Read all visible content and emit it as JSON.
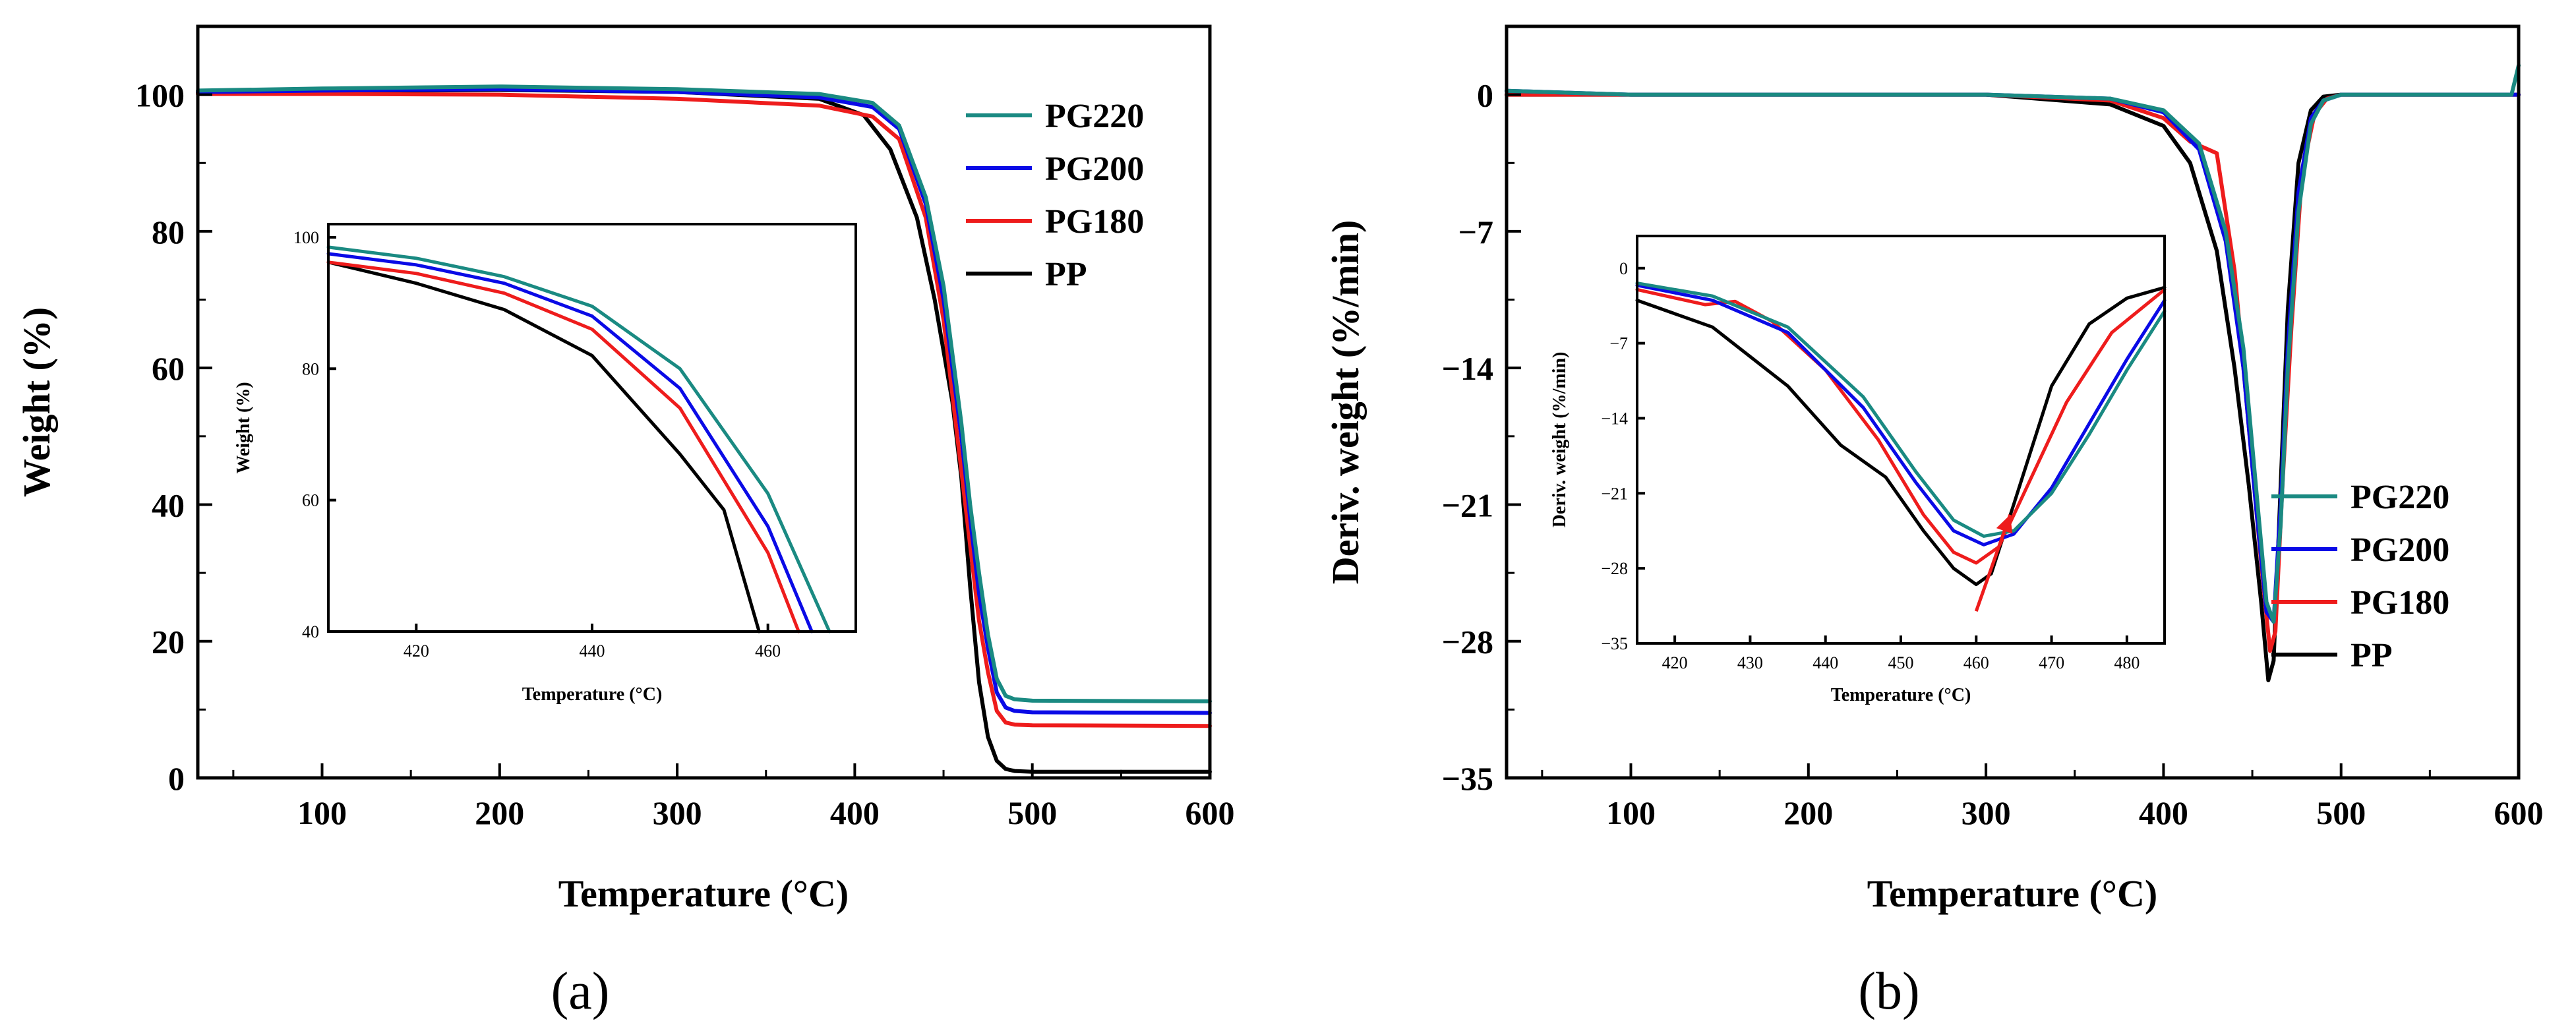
{
  "chart_data": [
    {
      "id": "a",
      "type": "line",
      "panel_label": "(a)",
      "title": "",
      "xlabel": "Temperature (°C)",
      "ylabel": "Weight (%)",
      "xlim": [
        30,
        600
      ],
      "ylim": [
        0,
        110
      ],
      "xticks": [
        100,
        200,
        300,
        400,
        500,
        600
      ],
      "yticks": [
        0,
        20,
        40,
        60,
        80,
        100
      ],
      "legend_position": "top-right",
      "colors": {
        "PG220": "#1a8a82",
        "PG200": "#0a0ae6",
        "PG180": "#ee1c1c",
        "PP": "#000000"
      },
      "series": [
        {
          "name": "PG220",
          "points": [
            [
              30,
              100.6
            ],
            [
              100,
              100.9
            ],
            [
              200,
              101.2
            ],
            [
              300,
              100.8
            ],
            [
              380,
              100.1
            ],
            [
              410,
              98.8
            ],
            [
              425,
              95.5
            ],
            [
              440,
              85
            ],
            [
              450,
              72
            ],
            [
              460,
              52
            ],
            [
              465,
              40
            ],
            [
              470,
              30
            ],
            [
              475,
              21
            ],
            [
              480,
              14.5
            ],
            [
              485,
              12
            ],
            [
              490,
              11.5
            ],
            [
              500,
              11.3
            ],
            [
              600,
              11.2
            ]
          ]
        },
        {
          "name": "PG200",
          "points": [
            [
              30,
              100.4
            ],
            [
              100,
              100.6
            ],
            [
              200,
              100.8
            ],
            [
              300,
              100.4
            ],
            [
              380,
              99.6
            ],
            [
              410,
              98.2
            ],
            [
              425,
              95
            ],
            [
              440,
              84
            ],
            [
              450,
              70
            ],
            [
              460,
              50
            ],
            [
              465,
              38
            ],
            [
              470,
              27
            ],
            [
              475,
              19
            ],
            [
              480,
              12.5
            ],
            [
              485,
              10.3
            ],
            [
              490,
              9.8
            ],
            [
              500,
              9.6
            ],
            [
              600,
              9.5
            ]
          ]
        },
        {
          "name": "PG180",
          "points": [
            [
              30,
              100.1
            ],
            [
              100,
              100.1
            ],
            [
              200,
              100.0
            ],
            [
              300,
              99.4
            ],
            [
              380,
              98.4
            ],
            [
              410,
              96.8
            ],
            [
              425,
              93.5
            ],
            [
              440,
              82
            ],
            [
              450,
              67
            ],
            [
              460,
              45
            ],
            [
              465,
              34
            ],
            [
              470,
              23
            ],
            [
              475,
              15.5
            ],
            [
              480,
              9.8
            ],
            [
              485,
              8.1
            ],
            [
              490,
              7.8
            ],
            [
              500,
              7.7
            ],
            [
              600,
              7.6
            ]
          ]
        },
        {
          "name": "PP",
          "points": [
            [
              30,
              100.3
            ],
            [
              100,
              100.5
            ],
            [
              200,
              100.7
            ],
            [
              300,
              100.4
            ],
            [
              380,
              99.4
            ],
            [
              405,
              97
            ],
            [
              420,
              92
            ],
            [
              435,
              82
            ],
            [
              445,
              70
            ],
            [
              455,
              55
            ],
            [
              460,
              44
            ],
            [
              465,
              28
            ],
            [
              470,
              14
            ],
            [
              475,
              6
            ],
            [
              480,
              2.5
            ],
            [
              485,
              1.3
            ],
            [
              490,
              1.0
            ],
            [
              500,
              0.9
            ],
            [
              600,
              0.9
            ]
          ]
        }
      ],
      "inset": {
        "xlabel": "Temperature (°C)",
        "ylabel": "Weight (%)",
        "xlim": [
          410,
          470
        ],
        "ylim": [
          40,
          102
        ],
        "xticks": [
          420,
          440,
          460
        ],
        "yticks": [
          40,
          60,
          80,
          100
        ],
        "series": [
          {
            "name": "PG220",
            "points": [
              [
                410,
                98.5
              ],
              [
                420,
                96.8
              ],
              [
                430,
                94
              ],
              [
                440,
                89.5
              ],
              [
                450,
                80
              ],
              [
                460,
                61
              ],
              [
                467,
                40
              ]
            ]
          },
          {
            "name": "PG200",
            "points": [
              [
                410,
                97.5
              ],
              [
                420,
                95.8
              ],
              [
                430,
                93
              ],
              [
                440,
                88
              ],
              [
                450,
                77
              ],
              [
                460,
                56
              ],
              [
                465,
                40
              ]
            ]
          },
          {
            "name": "PG180",
            "points": [
              [
                410,
                96.2
              ],
              [
                420,
                94.5
              ],
              [
                430,
                91.5
              ],
              [
                440,
                86
              ],
              [
                450,
                74
              ],
              [
                460,
                52
              ],
              [
                463.5,
                40
              ]
            ]
          },
          {
            "name": "PP",
            "points": [
              [
                410,
                96.2
              ],
              [
                420,
                93
              ],
              [
                430,
                89
              ],
              [
                440,
                82
              ],
              [
                450,
                67
              ],
              [
                455,
                58.5
              ],
              [
                459,
                40
              ]
            ]
          }
        ]
      }
    },
    {
      "id": "b",
      "type": "line",
      "panel_label": "(b)",
      "title": "",
      "xlabel": "Temperature (°C)",
      "ylabel": "Deriv. weight (%/min)",
      "xlim": [
        30,
        600
      ],
      "ylim": [
        -35,
        3.5
      ],
      "xticks": [
        100,
        200,
        300,
        400,
        500,
        600
      ],
      "yticks": [
        0,
        -7,
        -14,
        -21,
        -28,
        -35
      ],
      "legend_position": "right",
      "colors": {
        "PG220": "#1a8a82",
        "PG200": "#0a0ae6",
        "PG180": "#ee1c1c",
        "PP": "#000000"
      },
      "series": [
        {
          "name": "PG220",
          "points": [
            [
              30,
              0.2
            ],
            [
              100,
              0
            ],
            [
              300,
              0
            ],
            [
              370,
              -0.2
            ],
            [
              400,
              -0.8
            ],
            [
              420,
              -2.5
            ],
            [
              435,
              -7
            ],
            [
              445,
              -13
            ],
            [
              452,
              -20
            ],
            [
              458,
              -26
            ],
            [
              462,
              -27
            ],
            [
              466,
              -22
            ],
            [
              470,
              -14
            ],
            [
              476,
              -6
            ],
            [
              483,
              -1.5
            ],
            [
              490,
              -0.3
            ],
            [
              500,
              0
            ],
            [
              596,
              0
            ],
            [
              600,
              1.5
            ]
          ]
        },
        {
          "name": "PG200",
          "points": [
            [
              30,
              0.2
            ],
            [
              100,
              0
            ],
            [
              300,
              0
            ],
            [
              370,
              -0.2
            ],
            [
              400,
              -0.9
            ],
            [
              420,
              -2.8
            ],
            [
              435,
              -7.5
            ],
            [
              445,
              -14
            ],
            [
              452,
              -21
            ],
            [
              458,
              -26.5
            ],
            [
              462,
              -27
            ],
            [
              466,
              -21
            ],
            [
              470,
              -13
            ],
            [
              476,
              -5
            ],
            [
              483,
              -1.2
            ],
            [
              490,
              -0.3
            ],
            [
              500,
              0
            ],
            [
              600,
              0
            ]
          ]
        },
        {
          "name": "PG180",
          "points": [
            [
              30,
              0
            ],
            [
              100,
              0
            ],
            [
              300,
              0
            ],
            [
              370,
              -0.3
            ],
            [
              400,
              -1.2
            ],
            [
              415,
              -2.4
            ],
            [
              425,
              -2.8
            ],
            [
              430,
              -3.0
            ],
            [
              440,
              -9
            ],
            [
              448,
              -17
            ],
            [
              455,
              -24
            ],
            [
              460,
              -28.5
            ],
            [
              463,
              -27.5
            ],
            [
              467,
              -20
            ],
            [
              472,
              -12
            ],
            [
              478,
              -4
            ],
            [
              485,
              -1
            ],
            [
              492,
              -0.2
            ],
            [
              500,
              0
            ],
            [
              600,
              0
            ]
          ]
        },
        {
          "name": "PP",
          "points": [
            [
              30,
              0
            ],
            [
              100,
              0
            ],
            [
              300,
              0
            ],
            [
              370,
              -0.5
            ],
            [
              400,
              -1.6
            ],
            [
              415,
              -3.5
            ],
            [
              430,
              -8
            ],
            [
              440,
              -14
            ],
            [
              448,
              -20
            ],
            [
              455,
              -26
            ],
            [
              459,
              -30
            ],
            [
              462,
              -29
            ],
            [
              466,
              -20
            ],
            [
              470,
              -11
            ],
            [
              476,
              -3.5
            ],
            [
              483,
              -0.8
            ],
            [
              490,
              -0.1
            ],
            [
              500,
              0
            ],
            [
              600,
              0
            ]
          ]
        }
      ],
      "inset": {
        "xlabel": "Temperature (°C)",
        "ylabel": "Deriv. weight (%/min)",
        "xlim": [
          415,
          485
        ],
        "ylim": [
          -35,
          3
        ],
        "xticks": [
          420,
          430,
          440,
          450,
          460,
          470,
          480
        ],
        "yticks": [
          0,
          -7,
          -14,
          -21,
          -28,
          -35
        ],
        "series": [
          {
            "name": "PG220",
            "points": [
              [
                415,
                -1.4
              ],
              [
                425,
                -2.6
              ],
              [
                435,
                -5.5
              ],
              [
                445,
                -12
              ],
              [
                452,
                -19
              ],
              [
                457,
                -23.5
              ],
              [
                461,
                -25
              ],
              [
                465,
                -24.5
              ],
              [
                470,
                -21
              ],
              [
                475,
                -15.5
              ],
              [
                480,
                -9.5
              ],
              [
                485,
                -4
              ]
            ]
          },
          {
            "name": "PG200",
            "points": [
              [
                415,
                -1.6
              ],
              [
                425,
                -3.0
              ],
              [
                435,
                -6
              ],
              [
                445,
                -13
              ],
              [
                452,
                -20
              ],
              [
                457,
                -24.5
              ],
              [
                461,
                -25.8
              ],
              [
                465,
                -24.8
              ],
              [
                470,
                -20.5
              ],
              [
                475,
                -14.5
              ],
              [
                480,
                -8.5
              ],
              [
                485,
                -3
              ]
            ]
          },
          {
            "name": "PG180",
            "points": [
              [
                415,
                -2.0
              ],
              [
                424,
                -3.4
              ],
              [
                428,
                -3.1
              ],
              [
                433,
                -5
              ],
              [
                440,
                -9.5
              ],
              [
                447,
                -16
              ],
              [
                453,
                -23
              ],
              [
                457,
                -26.5
              ],
              [
                460,
                -27.5
              ],
              [
                463,
                -26
              ],
              [
                467,
                -20
              ],
              [
                472,
                -12.5
              ],
              [
                478,
                -6
              ],
              [
                485,
                -2
              ]
            ]
          },
          {
            "name": "PP",
            "points": [
              [
                415,
                -3.0
              ],
              [
                425,
                -5.5
              ],
              [
                435,
                -11
              ],
              [
                442,
                -16.5
              ],
              [
                448,
                -19.5
              ],
              [
                453,
                -24.5
              ],
              [
                457,
                -28
              ],
              [
                460,
                -29.5
              ],
              [
                462,
                -28.5
              ],
              [
                465,
                -22
              ],
              [
                470,
                -11
              ],
              [
                475,
                -5.2
              ],
              [
                480,
                -2.8
              ],
              [
                485,
                -1.8
              ]
            ]
          }
        ],
        "arrow": {
          "from": [
            460,
            -32
          ],
          "to": [
            464.5,
            -23
          ],
          "color": "#ee1c1c"
        }
      }
    }
  ]
}
